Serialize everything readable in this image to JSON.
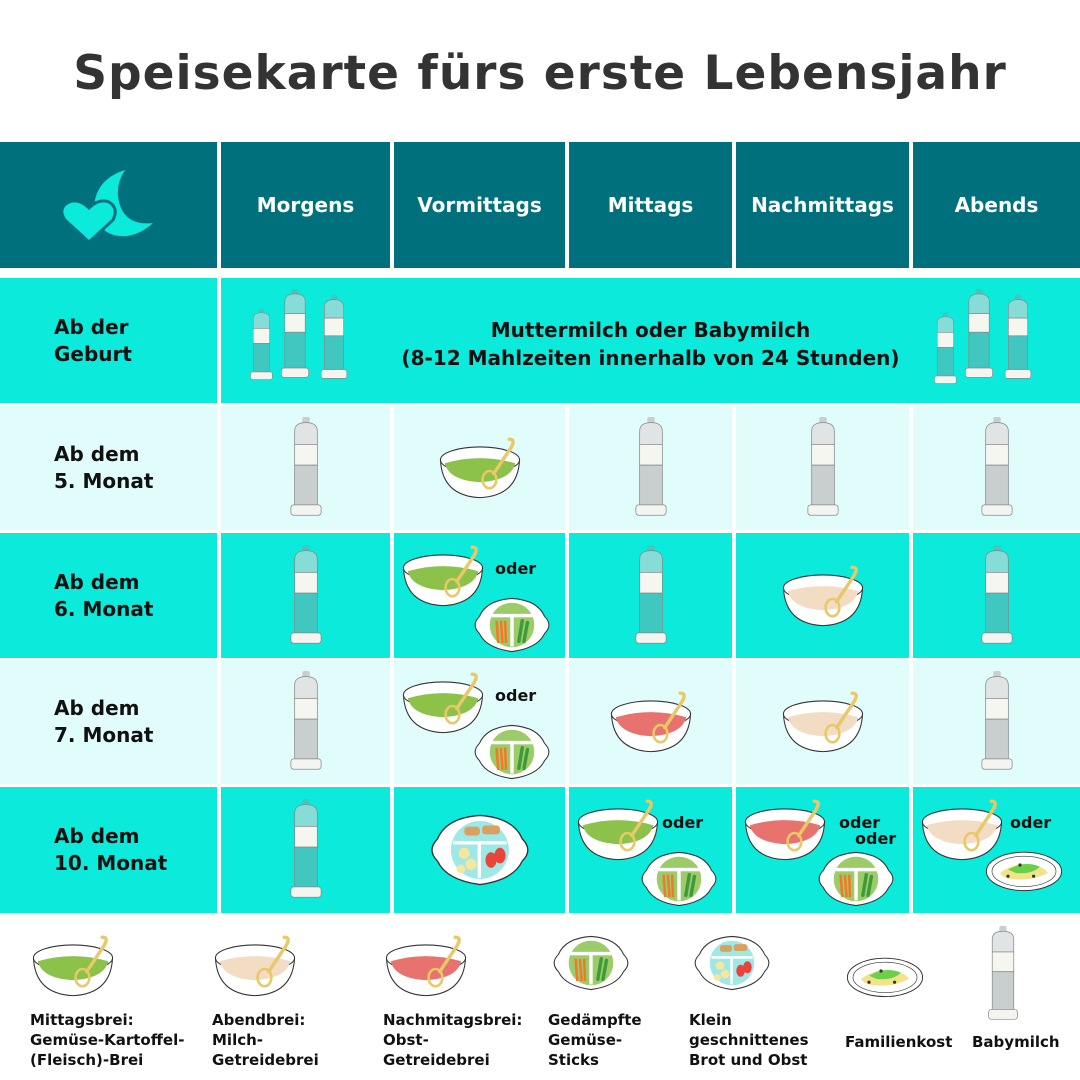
{
  "title": "Speisekarte fürs erste Lebensjahr",
  "colors": {
    "header": "#00717c",
    "row_bright": "#0ceadb",
    "row_light": "#e0fdfc",
    "logo": "#0ceadb"
  },
  "header": {
    "logo_icon": "moon-heart-icon",
    "columns": [
      "Morgens",
      "Vormittags",
      "Mittags",
      "Nachmittags",
      "Abends"
    ]
  },
  "rows": [
    {
      "label": "Ab der\nGeburt",
      "merged": true,
      "text_line1": "Muttermilch oder Babymilch",
      "text_line2": "(8-12 Mahlzeiten innerhalb von 24 Stunden)"
    },
    {
      "label": "Ab dem\n5. Monat",
      "cells": [
        [
          {
            "icon": "bottle-gray"
          }
        ],
        [
          {
            "icon": "bowl-green"
          }
        ],
        [
          {
            "icon": "bottle-gray"
          }
        ],
        [
          {
            "icon": "bottle-gray"
          }
        ],
        [
          {
            "icon": "bottle-gray"
          }
        ]
      ]
    },
    {
      "label": "Ab dem\n6. Monat",
      "cells": [
        [
          {
            "icon": "bottle-teal"
          }
        ],
        [
          {
            "icon": "bowl-green"
          },
          {
            "text": "oder"
          },
          {
            "icon": "plate-sticks"
          }
        ],
        [
          {
            "icon": "bottle-teal"
          }
        ],
        [
          {
            "icon": "bowl-beige"
          }
        ],
        [
          {
            "icon": "bottle-teal"
          }
        ]
      ]
    },
    {
      "label": "Ab dem\n7. Monat",
      "cells": [
        [
          {
            "icon": "bottle-gray"
          }
        ],
        [
          {
            "icon": "bowl-green"
          },
          {
            "text": "oder"
          },
          {
            "icon": "plate-sticks"
          }
        ],
        [
          {
            "icon": "bowl-pink"
          }
        ],
        [
          {
            "icon": "bowl-beige"
          }
        ],
        [
          {
            "icon": "bottle-gray"
          }
        ]
      ]
    },
    {
      "label": "Ab dem\n10. Monat",
      "cells": [
        [
          {
            "icon": "bottle-teal"
          }
        ],
        [
          {
            "icon": "plate-bread-fruit"
          }
        ],
        [
          {
            "icon": "bowl-green"
          },
          {
            "text": "oder"
          },
          {
            "icon": "plate-sticks"
          }
        ],
        [
          {
            "icon": "bowl-pink"
          },
          {
            "text": "oder"
          },
          {
            "text": "oder"
          },
          {
            "icon": "plate-sticks"
          }
        ],
        [
          {
            "icon": "bowl-beige"
          },
          {
            "text": "oder"
          },
          {
            "icon": "plate-family"
          }
        ]
      ]
    }
  ],
  "legend": [
    {
      "icon": "bowl-green",
      "label": "Mittagsbrei:\nGemüse-Kartoffel-\n(Fleisch)-Brei"
    },
    {
      "icon": "bowl-beige",
      "label": "Abendbrei:\nMilch-\nGetreidebrei"
    },
    {
      "icon": "bowl-pink",
      "label": "Nachmitagsbrei:\nObst-\nGetreidebrei"
    },
    {
      "icon": "plate-sticks",
      "label": "Gedämpfte\nGemüse-\nSticks"
    },
    {
      "icon": "plate-bread-fruit",
      "label": "Klein\ngeschnittenes\nBrot und Obst"
    },
    {
      "icon": "plate-family",
      "label": "Familienkost"
    },
    {
      "icon": "bottle-gray",
      "label": "Babymilch"
    }
  ]
}
